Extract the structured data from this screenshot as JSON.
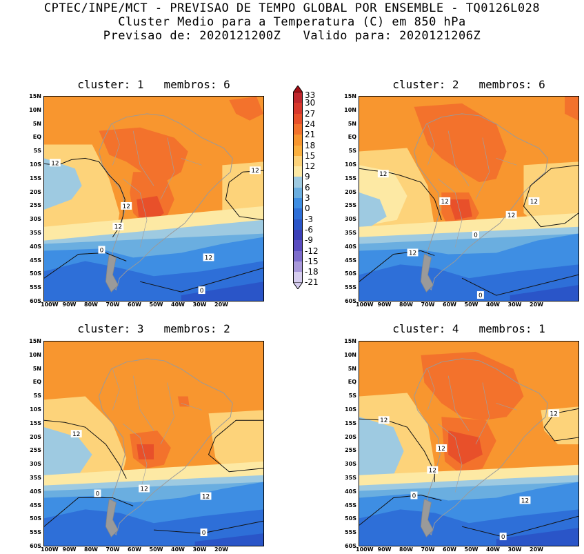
{
  "header": {
    "line1": "CPTEC/INPE/MCT - PREVISAO DE TEMPO GLOBAL POR ENSEMBLE - TQ0126L028",
    "line2": "Cluster Medio para a Temperatura (C) em 850 hPa",
    "line3": "Previsao de: 2020121200Z   Valido para: 2020121206Z"
  },
  "panels": [
    {
      "title": "cluster: 1   membros: 6",
      "labels": [
        "12",
        "12",
        "12",
        "12",
        "0",
        "12",
        "0"
      ]
    },
    {
      "title": "cluster: 2   membros: 6",
      "labels": [
        "12",
        "12",
        "12",
        "12",
        "0",
        "12",
        "0"
      ]
    },
    {
      "title": "cluster: 3   membros: 2",
      "labels": [
        "12",
        "12",
        "12",
        "0",
        "0"
      ]
    },
    {
      "title": "cluster: 4   membros: 1",
      "labels": [
        "12",
        "12",
        "12",
        "12",
        "0",
        "12",
        "0"
      ]
    }
  ],
  "axes": {
    "lat_ticks": [
      "15N",
      "10N",
      "5N",
      "EQ",
      "5S",
      "10S",
      "15S",
      "20S",
      "25S",
      "30S",
      "35S",
      "40S",
      "45S",
      "50S",
      "55S",
      "60S"
    ],
    "lon_ticks": [
      "100W",
      "90W",
      "80W",
      "70W",
      "60W",
      "50W",
      "40W",
      "30W",
      "20W"
    ]
  },
  "colorbar": {
    "labels": [
      "33",
      "30",
      "27",
      "24",
      "21",
      "18",
      "15",
      "12",
      "9",
      "6",
      "3",
      "0",
      "-3",
      "-6",
      "-9",
      "-12",
      "-15",
      "-18",
      "-21"
    ],
    "colors": [
      "#a50f15",
      "#c0272d",
      "#d8382c",
      "#e8502a",
      "#f3722c",
      "#f8962f",
      "#fbb03f",
      "#fdd37a",
      "#fde9a4",
      "#9ecae1",
      "#6aaee0",
      "#3e8ee3",
      "#2e6fd8",
      "#2a55c8",
      "#3b3fb8",
      "#5a4cc0",
      "#7d6ccc",
      "#a898da",
      "#d6cdef"
    ]
  }
}
